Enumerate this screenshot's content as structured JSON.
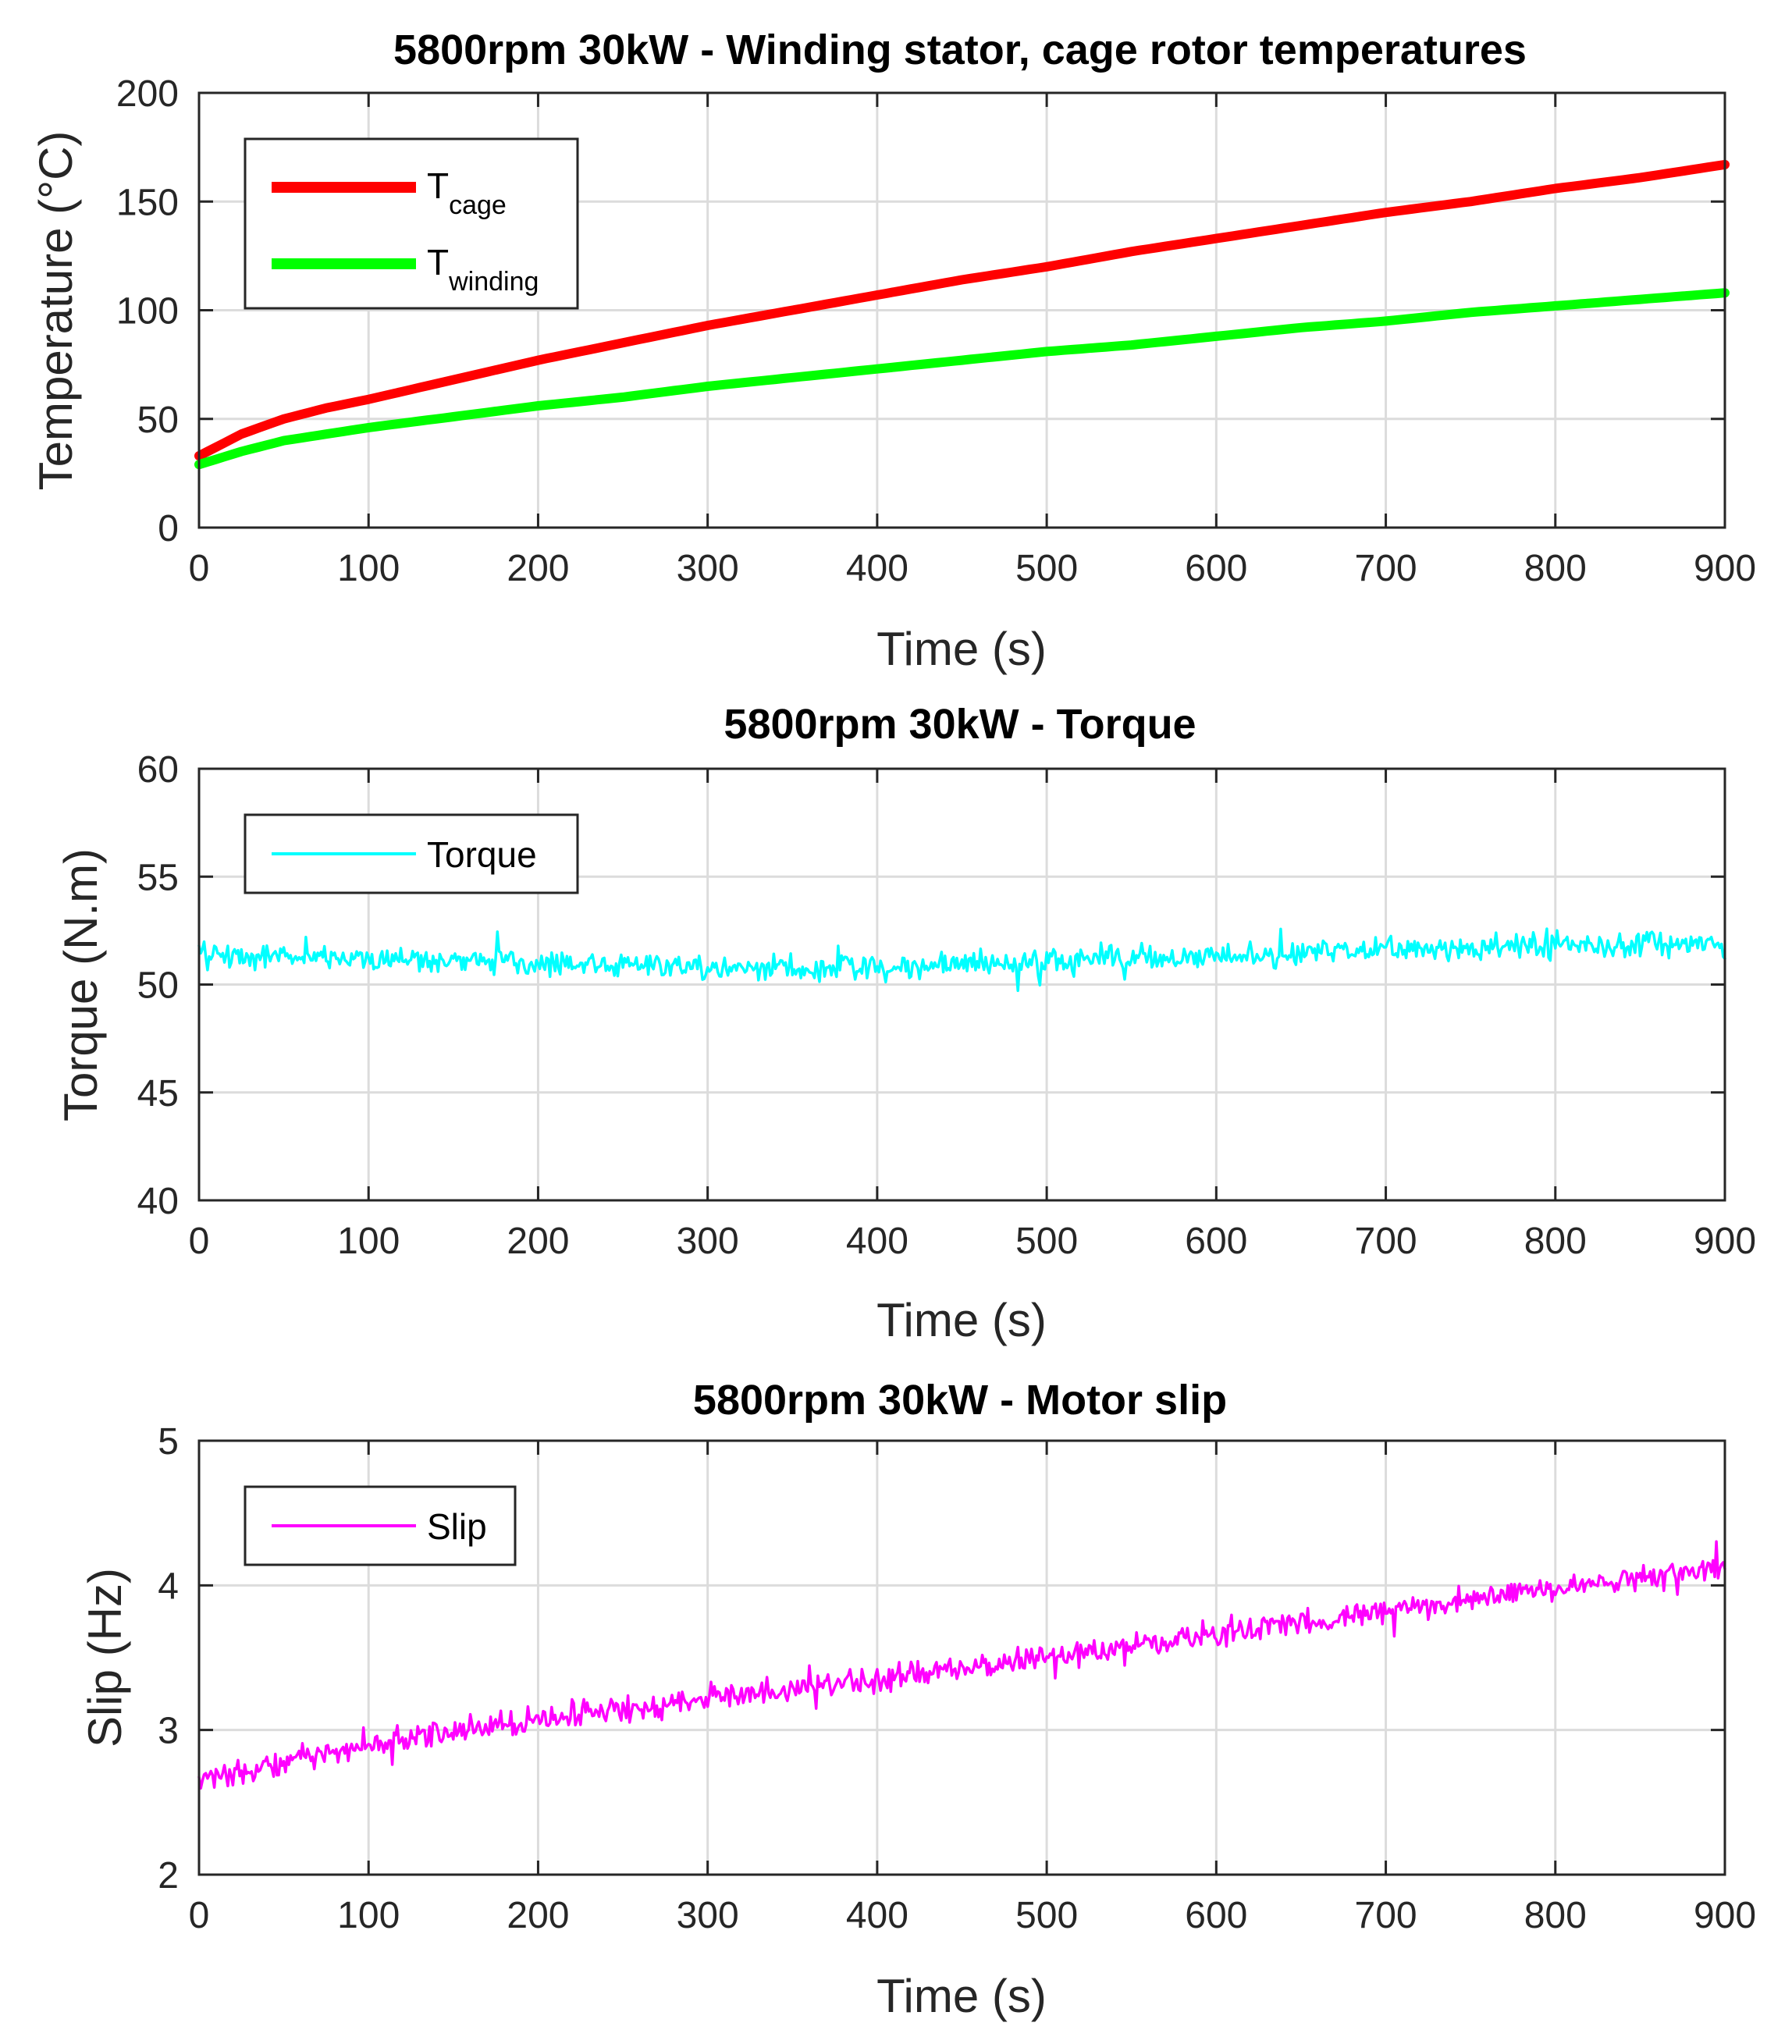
{
  "chart_data": [
    {
      "type": "line",
      "title": "5800rpm 30kW - Winding stator, cage rotor temperatures",
      "xlabel": "Time (s)",
      "ylabel": "Temperature (°C)",
      "xlim": [
        0,
        900
      ],
      "ylim": [
        0,
        200
      ],
      "xticks": [
        "0",
        "100",
        "200",
        "300",
        "400",
        "500",
        "600",
        "700",
        "800",
        "900"
      ],
      "yticks": [
        "0",
        "50",
        "100",
        "150",
        "200"
      ],
      "grid": true,
      "legend_position": "top-left",
      "series": [
        {
          "name": "T_cage",
          "legend_main": "T",
          "legend_sub": "cage",
          "color": "#ff0000",
          "x": [
            0,
            25,
            50,
            75,
            100,
            150,
            200,
            250,
            300,
            350,
            400,
            450,
            500,
            550,
            600,
            650,
            700,
            750,
            800,
            850,
            900
          ],
          "y": [
            33,
            43,
            50,
            55,
            59,
            68,
            77,
            85,
            93,
            100,
            107,
            114,
            120,
            127,
            133,
            139,
            145,
            150,
            156,
            161,
            167
          ]
        },
        {
          "name": "T_winding",
          "legend_main": "T",
          "legend_sub": "winding",
          "color": "#00ff00",
          "x": [
            0,
            25,
            50,
            75,
            100,
            150,
            200,
            250,
            300,
            350,
            400,
            450,
            500,
            550,
            600,
            650,
            700,
            750,
            800,
            850,
            900
          ],
          "y": [
            29,
            35,
            40,
            43,
            46,
            51,
            56,
            60,
            65,
            69,
            73,
            77,
            81,
            84,
            88,
            92,
            95,
            99,
            102,
            105,
            108
          ]
        }
      ]
    },
    {
      "type": "line",
      "title": "5800rpm 30kW - Torque",
      "xlabel": "Time (s)",
      "ylabel": "Torque (N.m)",
      "xlim": [
        0,
        900
      ],
      "ylim": [
        40,
        60
      ],
      "xticks": [
        "0",
        "100",
        "200",
        "300",
        "400",
        "500",
        "600",
        "700",
        "800",
        "900"
      ],
      "yticks": [
        "40",
        "45",
        "50",
        "55",
        "60"
      ],
      "grid": true,
      "legend_position": "top-left",
      "series": [
        {
          "name": "Torque",
          "color": "#00ffff",
          "trend_x": [
            0,
            100,
            200,
            300,
            400,
            500,
            600,
            700,
            800,
            900
          ],
          "trend_y": [
            51.4,
            51.2,
            51.0,
            50.8,
            50.8,
            51.1,
            51.3,
            51.6,
            51.8,
            51.9
          ],
          "noise_amplitude": 0.55,
          "samples": 901
        }
      ]
    },
    {
      "type": "line",
      "title": "5800rpm 30kW - Motor slip",
      "xlabel": "Time (s)",
      "ylabel": "Slip (Hz)",
      "xlim": [
        0,
        900
      ],
      "ylim": [
        2,
        5
      ],
      "xticks": [
        "0",
        "100",
        "200",
        "300",
        "400",
        "500",
        "600",
        "700",
        "800",
        "900"
      ],
      "yticks": [
        "2",
        "3",
        "4",
        "5"
      ],
      "grid": true,
      "legend_position": "top-left",
      "series": [
        {
          "name": "Slip",
          "color": "#ff00ff",
          "trend_x": [
            0,
            100,
            200,
            300,
            400,
            500,
            600,
            700,
            800,
            900
          ],
          "trend_y": [
            2.65,
            2.9,
            3.08,
            3.22,
            3.35,
            3.5,
            3.67,
            3.82,
            3.98,
            4.12
          ],
          "noise_amplitude": 0.085,
          "samples": 901
        }
      ]
    }
  ]
}
